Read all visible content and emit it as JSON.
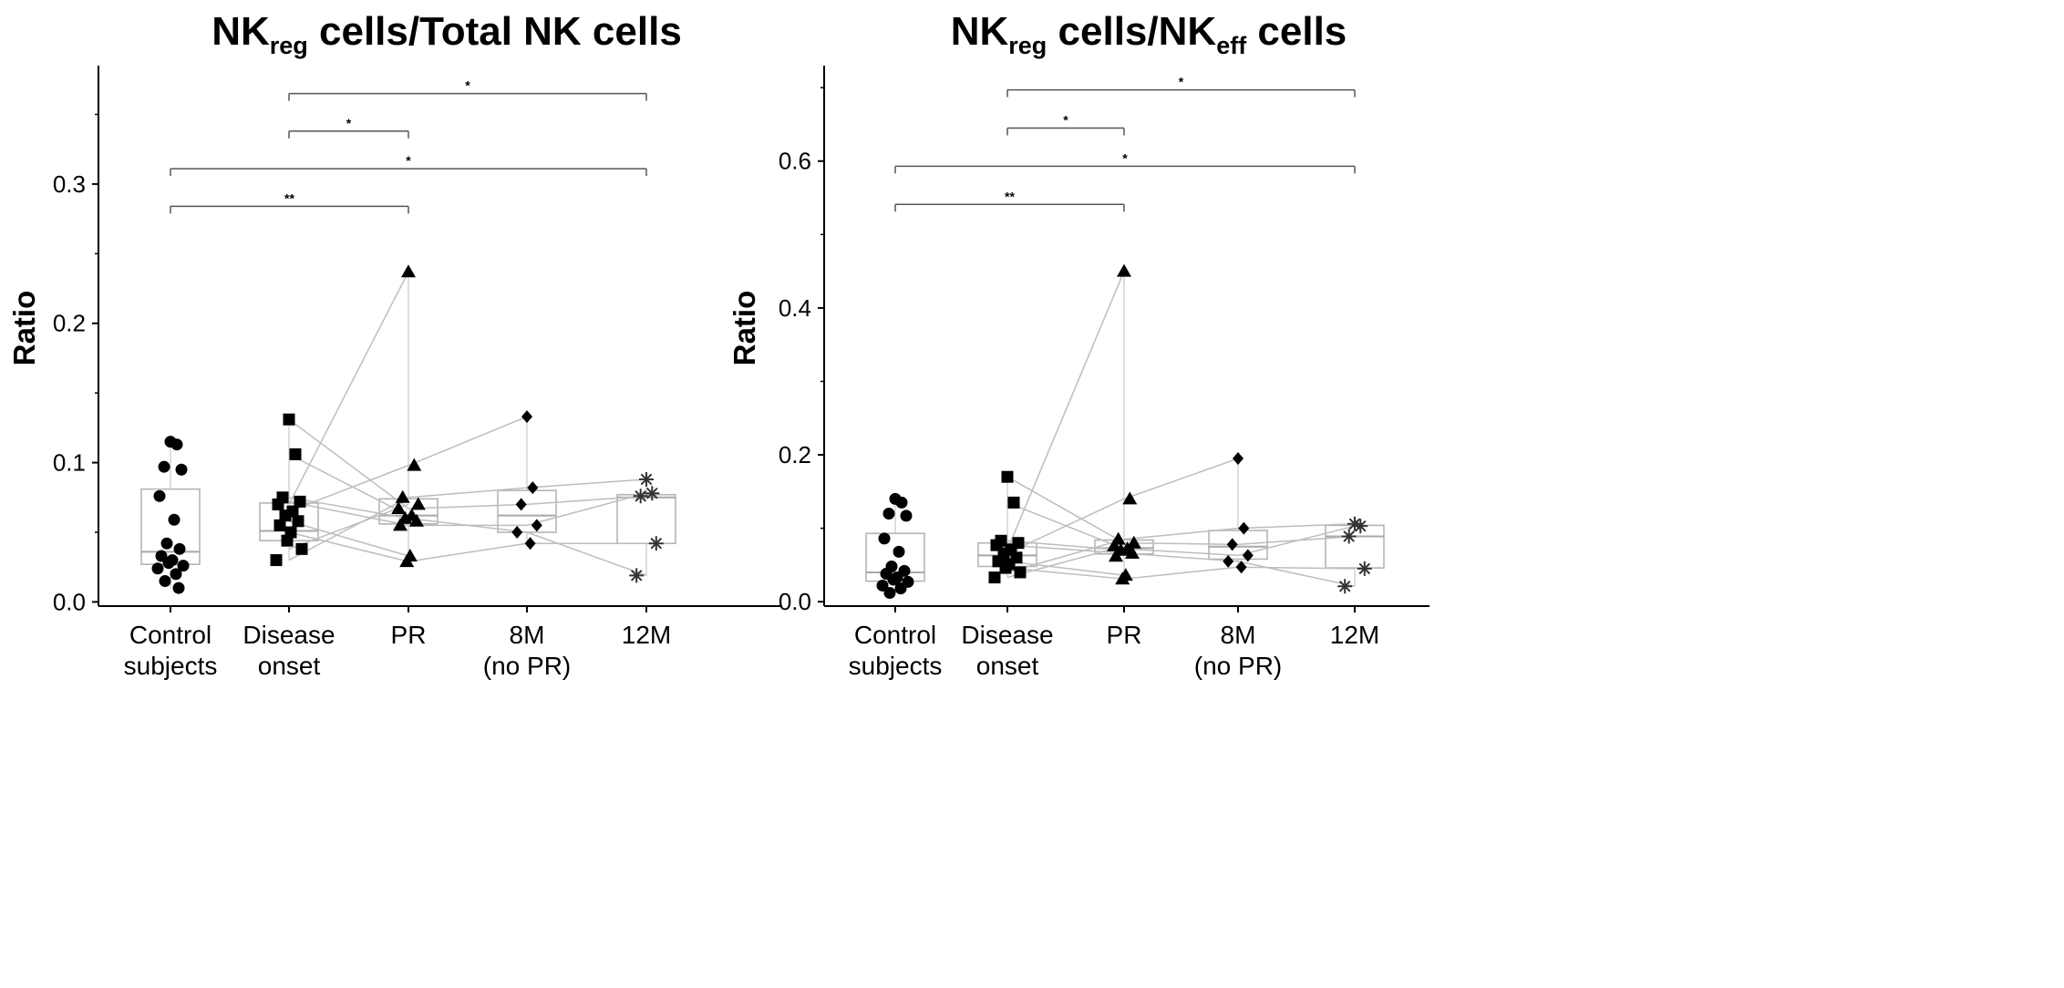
{
  "chart_data": [
    {
      "type": "box-scatter",
      "title": {
        "main": "NK",
        "sub": "reg",
        "rest": " cells/Total NK cells"
      },
      "ylabel": "Ratio",
      "ylim": [
        -0.003,
        0.385
      ],
      "yticks": [
        0.0,
        0.1,
        0.2,
        0.3
      ],
      "ytick_labels": [
        "0.0",
        "0.1",
        "0.2",
        "0.3"
      ],
      "minor_yticks": [
        0.05,
        0.15,
        0.25,
        0.35
      ],
      "categories": [
        {
          "lines": [
            "Control",
            "subjects"
          ]
        },
        {
          "lines": [
            "Disease",
            "onset"
          ]
        },
        {
          "lines": [
            "PR"
          ]
        },
        {
          "lines": [
            "8M",
            "(no PR)"
          ]
        },
        {
          "lines": [
            "12M"
          ]
        }
      ],
      "markers": [
        "circle",
        "square",
        "triangle",
        "diamond",
        "asterisk"
      ],
      "groups": [
        {
          "points": [
            0.115,
            0.113,
            0.097,
            0.095,
            0.076,
            0.059,
            0.042,
            0.038,
            0.033,
            0.03,
            0.028,
            0.026,
            0.024,
            0.02,
            0.015,
            0.01
          ],
          "box": [
            0.027,
            0.036,
            0.081
          ]
        },
        {
          "points": [
            0.131,
            0.106,
            0.075,
            0.072,
            0.07,
            0.065,
            0.062,
            0.058,
            0.055,
            0.05,
            0.044,
            0.038,
            0.03
          ],
          "box": [
            0.044,
            0.051,
            0.071
          ]
        },
        {
          "points": [
            0.237,
            0.098,
            0.075,
            0.07,
            0.067,
            0.062,
            0.06,
            0.058,
            0.055,
            0.033,
            0.029
          ],
          "box": [
            0.056,
            0.062,
            0.074
          ]
        },
        {
          "points": [
            0.133,
            0.082,
            0.07,
            0.055,
            0.05,
            0.042
          ],
          "box": [
            0.05,
            0.062,
            0.08
          ]
        },
        {
          "points": [
            0.088,
            0.078,
            0.076,
            0.042,
            0.019
          ],
          "box": [
            0.042,
            0.075,
            0.077
          ]
        }
      ],
      "connections": [
        [
          1,
          0.131,
          2,
          0.067
        ],
        [
          1,
          0.106,
          2,
          0.062
        ],
        [
          1,
          0.075,
          2,
          0.06
        ],
        [
          1,
          0.072,
          2,
          0.055
        ],
        [
          1,
          0.07,
          2,
          0.237
        ],
        [
          1,
          0.065,
          2,
          0.098
        ],
        [
          1,
          0.058,
          2,
          0.033
        ],
        [
          1,
          0.05,
          2,
          0.029
        ],
        [
          1,
          0.038,
          2,
          0.07
        ],
        [
          1,
          0.03,
          2,
          0.075
        ],
        [
          2,
          0.098,
          3,
          0.133
        ],
        [
          2,
          0.075,
          3,
          0.082
        ],
        [
          2,
          0.067,
          3,
          0.07
        ],
        [
          2,
          0.06,
          3,
          0.05
        ],
        [
          2,
          0.055,
          3,
          0.055
        ],
        [
          2,
          0.029,
          3,
          0.042
        ],
        [
          3,
          0.082,
          4,
          0.088
        ],
        [
          3,
          0.07,
          4,
          0.076
        ],
        [
          3,
          0.055,
          4,
          0.078
        ],
        [
          3,
          0.05,
          4,
          0.019
        ],
        [
          3,
          0.042,
          4,
          0.042
        ]
      ],
      "significance": [
        {
          "from": 1,
          "to": 4,
          "y": 0.365,
          "label": "*"
        },
        {
          "from": 1,
          "to": 2,
          "y": 0.338,
          "label": "*"
        },
        {
          "from": 0,
          "to": 4,
          "y": 0.311,
          "label": "*"
        },
        {
          "from": 0,
          "to": 2,
          "y": 0.284,
          "label": "**"
        }
      ]
    },
    {
      "type": "box-scatter",
      "title": {
        "main": "NK",
        "sub": "reg",
        "rest": " cells/NK",
        "sub2": "eff",
        "rest2": " cells"
      },
      "ylabel": "Ratio",
      "ylim": [
        -0.006,
        0.73
      ],
      "yticks": [
        0.0,
        0.2,
        0.4,
        0.6
      ],
      "ytick_labels": [
        "0.0",
        "0.2",
        "0.4",
        "0.6"
      ],
      "minor_yticks": [
        0.1,
        0.3,
        0.5,
        0.7
      ],
      "categories": [
        {
          "lines": [
            "Control",
            "subjects"
          ]
        },
        {
          "lines": [
            "Disease",
            "onset"
          ]
        },
        {
          "lines": [
            "PR"
          ]
        },
        {
          "lines": [
            "8M",
            "(no PR)"
          ]
        },
        {
          "lines": [
            "12M"
          ]
        }
      ],
      "markers": [
        "circle",
        "square",
        "triangle",
        "diamond",
        "asterisk"
      ],
      "groups": [
        {
          "points": [
            0.14,
            0.135,
            0.12,
            0.117,
            0.086,
            0.068,
            0.048,
            0.042,
            0.038,
            0.033,
            0.03,
            0.027,
            0.022,
            0.018,
            0.012
          ],
          "box": [
            0.028,
            0.04,
            0.093
          ]
        },
        {
          "points": [
            0.17,
            0.135,
            0.083,
            0.08,
            0.077,
            0.071,
            0.066,
            0.06,
            0.055,
            0.051,
            0.046,
            0.04,
            0.033
          ],
          "box": [
            0.048,
            0.063,
            0.08
          ]
        },
        {
          "points": [
            0.45,
            0.14,
            0.085,
            0.08,
            0.076,
            0.072,
            0.07,
            0.066,
            0.062,
            0.036,
            0.031
          ],
          "box": [
            0.065,
            0.073,
            0.084
          ]
        },
        {
          "points": [
            0.195,
            0.1,
            0.078,
            0.063,
            0.055,
            0.047
          ],
          "box": [
            0.058,
            0.075,
            0.097
          ]
        },
        {
          "points": [
            0.106,
            0.103,
            0.089,
            0.045,
            0.021
          ],
          "box": [
            0.046,
            0.089,
            0.104
          ]
        }
      ],
      "connections": [
        [
          1,
          0.17,
          2,
          0.08
        ],
        [
          1,
          0.135,
          2,
          0.072
        ],
        [
          1,
          0.083,
          2,
          0.07
        ],
        [
          1,
          0.077,
          2,
          0.066
        ],
        [
          1,
          0.071,
          2,
          0.45
        ],
        [
          1,
          0.066,
          2,
          0.14
        ],
        [
          1,
          0.055,
          2,
          0.036
        ],
        [
          1,
          0.046,
          2,
          0.031
        ],
        [
          1,
          0.04,
          2,
          0.085
        ],
        [
          1,
          0.033,
          2,
          0.076
        ],
        [
          2,
          0.14,
          3,
          0.195
        ],
        [
          2,
          0.085,
          3,
          0.1
        ],
        [
          2,
          0.08,
          3,
          0.078
        ],
        [
          2,
          0.072,
          3,
          0.063
        ],
        [
          2,
          0.066,
          3,
          0.055
        ],
        [
          2,
          0.031,
          3,
          0.047
        ],
        [
          3,
          0.1,
          4,
          0.106
        ],
        [
          3,
          0.078,
          4,
          0.089
        ],
        [
          3,
          0.063,
          4,
          0.103
        ],
        [
          3,
          0.055,
          4,
          0.021
        ],
        [
          3,
          0.047,
          4,
          0.045
        ]
      ],
      "significance": [
        {
          "from": 1,
          "to": 4,
          "y": 0.697,
          "label": "*"
        },
        {
          "from": 1,
          "to": 2,
          "y": 0.645,
          "label": "*"
        },
        {
          "from": 0,
          "to": 4,
          "y": 0.593,
          "label": "*"
        },
        {
          "from": 0,
          "to": 2,
          "y": 0.541,
          "label": "**"
        }
      ]
    }
  ]
}
